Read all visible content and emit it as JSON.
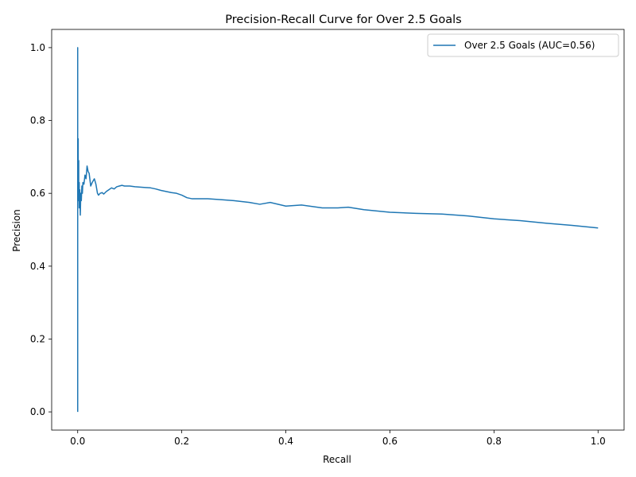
{
  "chart_data": {
    "type": "line",
    "title": "Precision-Recall Curve for Over 2.5 Goals",
    "xlabel": "Recall",
    "ylabel": "Precision",
    "xlim": [
      -0.05,
      1.05
    ],
    "ylim": [
      -0.05,
      1.05
    ],
    "xticks": [
      "0.0",
      "0.2",
      "0.4",
      "0.6",
      "0.8",
      "1.0"
    ],
    "yticks": [
      "0.0",
      "0.2",
      "0.4",
      "0.6",
      "0.8",
      "1.0"
    ],
    "grid": false,
    "legend_position": "top-right",
    "series": [
      {
        "name": "Over 2.5 Goals (AUC=0.56)",
        "color": "#1f77b4",
        "x": [
          0.0,
          0.0,
          0.0,
          0.001,
          0.001,
          0.002,
          0.002,
          0.003,
          0.003,
          0.004,
          0.005,
          0.006,
          0.007,
          0.008,
          0.009,
          0.01,
          0.012,
          0.014,
          0.016,
          0.018,
          0.02,
          0.022,
          0.025,
          0.028,
          0.03,
          0.032,
          0.035,
          0.038,
          0.04,
          0.043,
          0.047,
          0.05,
          0.055,
          0.06,
          0.065,
          0.07,
          0.075,
          0.08,
          0.085,
          0.09,
          0.1,
          0.11,
          0.12,
          0.13,
          0.14,
          0.15,
          0.16,
          0.17,
          0.18,
          0.19,
          0.2,
          0.21,
          0.22,
          0.23,
          0.25,
          0.28,
          0.3,
          0.33,
          0.35,
          0.37,
          0.4,
          0.43,
          0.47,
          0.5,
          0.52,
          0.55,
          0.6,
          0.65,
          0.7,
          0.75,
          0.8,
          0.85,
          0.9,
          0.95,
          1.0
        ],
        "y": [
          0.0,
          1.0,
          0.55,
          0.75,
          0.6,
          0.69,
          0.58,
          0.63,
          0.56,
          0.61,
          0.54,
          0.6,
          0.58,
          0.62,
          0.6,
          0.63,
          0.625,
          0.65,
          0.64,
          0.675,
          0.66,
          0.655,
          0.62,
          0.63,
          0.635,
          0.64,
          0.625,
          0.6,
          0.595,
          0.6,
          0.602,
          0.598,
          0.605,
          0.61,
          0.615,
          0.612,
          0.618,
          0.62,
          0.622,
          0.62,
          0.62,
          0.618,
          0.617,
          0.616,
          0.615,
          0.612,
          0.608,
          0.605,
          0.602,
          0.6,
          0.595,
          0.588,
          0.585,
          0.585,
          0.585,
          0.582,
          0.58,
          0.575,
          0.57,
          0.575,
          0.565,
          0.568,
          0.56,
          0.56,
          0.562,
          0.555,
          0.548,
          0.545,
          0.543,
          0.538,
          0.53,
          0.525,
          0.518,
          0.512,
          0.505
        ]
      }
    ]
  }
}
